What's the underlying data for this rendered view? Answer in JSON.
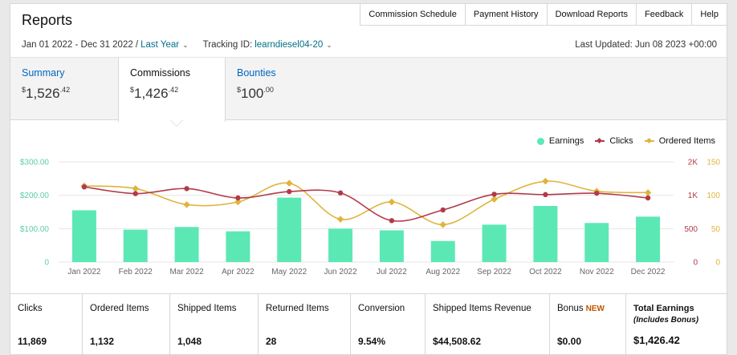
{
  "header": {
    "title": "Reports"
  },
  "topnav": [
    "Commission Schedule",
    "Payment History",
    "Download Reports",
    "Feedback",
    "Help"
  ],
  "filters": {
    "date_range": "Jan 01 2022 - Dec 31 2022 /",
    "period": "Last Year",
    "tracking_label": "Tracking ID:",
    "tracking_id": "learndiesel04-20",
    "last_updated": "Last Updated: Jun 08 2023 +00:00"
  },
  "tabs": [
    {
      "label": "Summary",
      "currency": "$",
      "whole": "1,526",
      "cents": ".42"
    },
    {
      "label": "Commissions",
      "currency": "$",
      "whole": "1,426",
      "cents": ".42"
    },
    {
      "label": "Bounties",
      "currency": "$",
      "whole": "100",
      "cents": ".00"
    }
  ],
  "legend": {
    "earnings": "Earnings",
    "clicks": "Clicks",
    "ordered": "Ordered Items"
  },
  "colors": {
    "earnings": "#5ce8b5",
    "clicks": "#b23a4a",
    "ordered": "#e0b43c",
    "axis_left": "#5ccfa3",
    "axis_clicks": "#b23a4a",
    "axis_ordered": "#e0b43c",
    "link": "#0066c0"
  },
  "chart_data": {
    "type": "bar",
    "categories": [
      "Jan 2022",
      "Feb 2022",
      "Mar 2022",
      "Apr 2022",
      "May 2022",
      "Jun 2022",
      "Jul 2022",
      "Aug 2022",
      "Sep 2022",
      "Oct 2022",
      "Nov 2022",
      "Dec 2022"
    ],
    "series": [
      {
        "name": "Earnings",
        "type": "bar",
        "axis": "left",
        "values": [
          155,
          97,
          105,
          92,
          193,
          100,
          95,
          63,
          112,
          168,
          117,
          136
        ]
      },
      {
        "name": "Clicks",
        "type": "line",
        "axis": "right1",
        "values": [
          1250,
          1050,
          1200,
          960,
          1110,
          1070,
          620,
          780,
          1030,
          1020,
          1060,
          960
        ]
      },
      {
        "name": "Ordered Items",
        "type": "line",
        "axis": "right2",
        "values": [
          114,
          110,
          86,
          90,
          118,
          64,
          90,
          56,
          94,
          121,
          106,
          104
        ]
      }
    ],
    "axes": {
      "left": {
        "ticks": [
          "0",
          "$100.00",
          "$200.00",
          "$300.00"
        ],
        "ylim": [
          0,
          300
        ]
      },
      "right1": {
        "ticks": [
          "0",
          "500",
          "1K",
          "2K"
        ],
        "ylim": [
          0,
          2000
        ]
      },
      "right2": {
        "ticks": [
          "0",
          "50",
          "100",
          "150"
        ],
        "ylim": [
          0,
          150
        ]
      }
    },
    "grid": true,
    "legend_position": "top-right"
  },
  "stats": [
    {
      "label": "Clicks",
      "value": "11,869"
    },
    {
      "label": "Ordered Items",
      "value": "1,132"
    },
    {
      "label": "Shipped Items",
      "value": "1,048"
    },
    {
      "label": "Returned Items",
      "value": "28"
    },
    {
      "label": "Conversion",
      "value": "9.54%"
    },
    {
      "label": "Shipped Items Revenue",
      "value": "$44,508.62"
    },
    {
      "label": "Bonus",
      "badge": "NEW",
      "value": "$0.00"
    },
    {
      "label": "Total Earnings",
      "sublabel": "(Includes Bonus)",
      "value": "$1,426.42"
    }
  ]
}
